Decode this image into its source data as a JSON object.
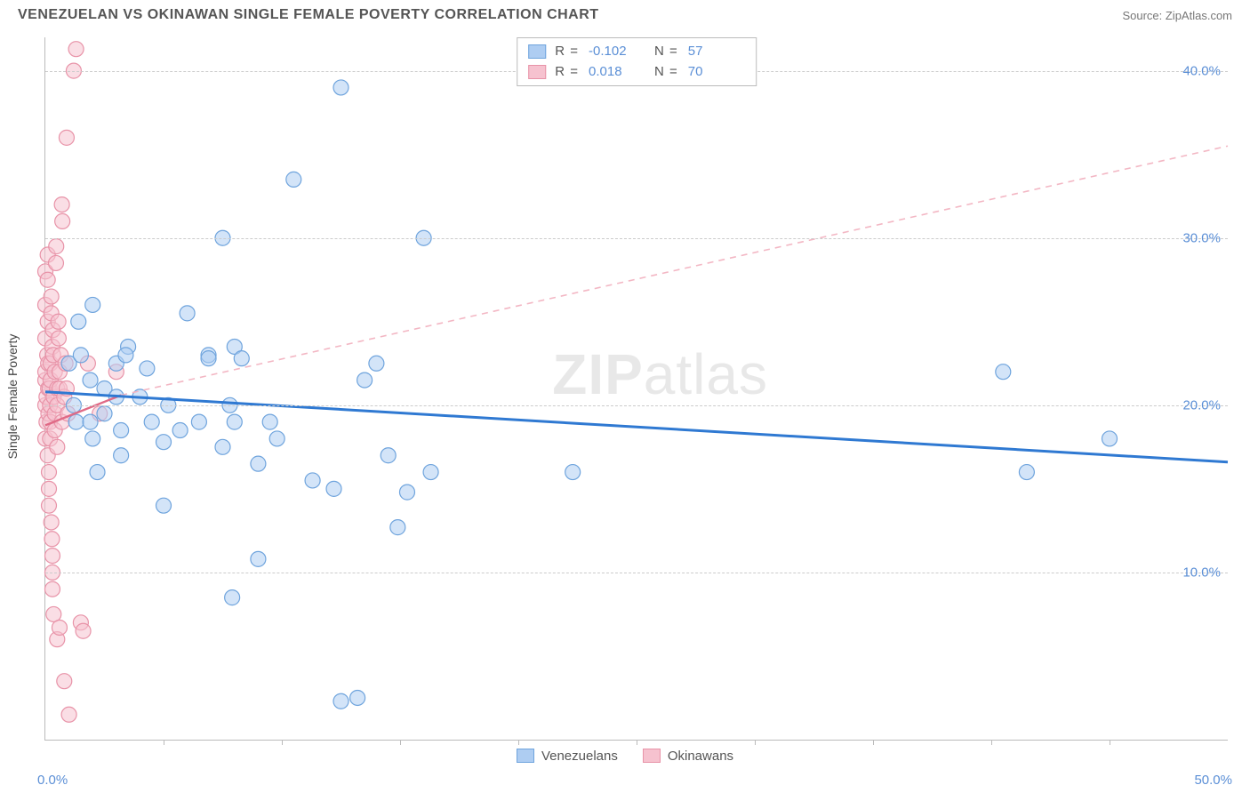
{
  "title": "VENEZUELAN VS OKINAWAN SINGLE FEMALE POVERTY CORRELATION CHART",
  "source_label": "Source: ZipAtlas.com",
  "watermark": "ZIPatlas",
  "y_axis_title": "Single Female Poverty",
  "chart": {
    "type": "scatter",
    "xlim": [
      0,
      50
    ],
    "ylim": [
      0,
      42
    ],
    "x_tick_step": 5,
    "x_origin_label": "0.0%",
    "x_max_label": "50.0%",
    "y_ticks": [
      10,
      20,
      30,
      40
    ],
    "y_tick_labels": [
      "10.0%",
      "20.0%",
      "30.0%",
      "40.0%"
    ],
    "grid_color": "#cccccc",
    "background_color": "#ffffff",
    "axis_color": "#bbbbbb",
    "tick_label_color": "#5b8fd6",
    "marker_radius": 8.5,
    "marker_stroke_width": 1.2,
    "series": {
      "venezuelans": {
        "label": "Venezuelans",
        "fill": "#aecdf2",
        "stroke": "#6fa4dd",
        "fill_opacity": 0.55,
        "R": "-0.102",
        "N": "57",
        "trend": {
          "type": "solid",
          "color": "#2f79d2",
          "width": 3,
          "x1": 0,
          "y1": 20.8,
          "x2": 50,
          "y2": 16.6
        },
        "points": [
          [
            1.0,
            22.5
          ],
          [
            1.2,
            20.0
          ],
          [
            1.3,
            19.0
          ],
          [
            1.4,
            25.0
          ],
          [
            1.5,
            23.0
          ],
          [
            1.9,
            19.0
          ],
          [
            1.9,
            21.5
          ],
          [
            2.0,
            18.0
          ],
          [
            2.0,
            26.0
          ],
          [
            2.2,
            16.0
          ],
          [
            2.5,
            21.0
          ],
          [
            2.5,
            19.5
          ],
          [
            3.0,
            20.5
          ],
          [
            3.0,
            22.5
          ],
          [
            3.2,
            18.5
          ],
          [
            3.2,
            17.0
          ],
          [
            3.5,
            23.5
          ],
          [
            3.4,
            23.0
          ],
          [
            4.0,
            20.5
          ],
          [
            4.5,
            19.0
          ],
          [
            4.3,
            22.2
          ],
          [
            5.0,
            17.8
          ],
          [
            5.0,
            14.0
          ],
          [
            5.2,
            20.0
          ],
          [
            5.7,
            18.5
          ],
          [
            6.0,
            25.5
          ],
          [
            6.5,
            19.0
          ],
          [
            6.9,
            23.0
          ],
          [
            6.9,
            22.8
          ],
          [
            7.5,
            17.5
          ],
          [
            7.5,
            30.0
          ],
          [
            7.8,
            20.0
          ],
          [
            7.9,
            8.5
          ],
          [
            8.0,
            19.0
          ],
          [
            8.0,
            23.5
          ],
          [
            8.3,
            22.8
          ],
          [
            9.0,
            16.5
          ],
          [
            9.0,
            10.8
          ],
          [
            9.5,
            19.0
          ],
          [
            9.8,
            18.0
          ],
          [
            10.5,
            33.5
          ],
          [
            11.3,
            15.5
          ],
          [
            12.2,
            15.0
          ],
          [
            12.5,
            2.3
          ],
          [
            13.2,
            2.5
          ],
          [
            12.5,
            39.0
          ],
          [
            13.5,
            21.5
          ],
          [
            14.0,
            22.5
          ],
          [
            14.5,
            17.0
          ],
          [
            14.9,
            12.7
          ],
          [
            15.3,
            14.8
          ],
          [
            16.0,
            30.0
          ],
          [
            16.3,
            16.0
          ],
          [
            22.3,
            16.0
          ],
          [
            40.5,
            22.0
          ],
          [
            41.5,
            16.0
          ],
          [
            45.0,
            18.0
          ]
        ]
      },
      "okinawans": {
        "label": "Okinawans",
        "fill": "#f6c2cf",
        "stroke": "#e893a8",
        "fill_opacity": 0.55,
        "R": "0.018",
        "N": "70",
        "trend_solid": {
          "color": "#e06a86",
          "width": 2.4,
          "x1": 0,
          "y1": 18.8,
          "x2": 3.2,
          "y2": 20.6
        },
        "trend_dashed": {
          "color": "#f3b7c4",
          "width": 1.6,
          "dash": "7 6",
          "x1": 3.2,
          "y1": 20.6,
          "x2": 50,
          "y2": 35.5
        },
        "points": [
          [
            0.0,
            18.0
          ],
          [
            0.0,
            20.0
          ],
          [
            0.0,
            21.5
          ],
          [
            0.0,
            22.0
          ],
          [
            0.0,
            24.0
          ],
          [
            0.0,
            26.0
          ],
          [
            0.0,
            28.0
          ],
          [
            0.05,
            19.0
          ],
          [
            0.05,
            20.5
          ],
          [
            0.08,
            23.0
          ],
          [
            0.1,
            25.0
          ],
          [
            0.1,
            27.5
          ],
          [
            0.1,
            29.0
          ],
          [
            0.1,
            17.0
          ],
          [
            0.12,
            21.0
          ],
          [
            0.12,
            22.5
          ],
          [
            0.13,
            19.5
          ],
          [
            0.15,
            16.0
          ],
          [
            0.15,
            14.0
          ],
          [
            0.15,
            15.0
          ],
          [
            0.18,
            21.0
          ],
          [
            0.2,
            20.0
          ],
          [
            0.2,
            19.0
          ],
          [
            0.2,
            18.0
          ],
          [
            0.22,
            22.5
          ],
          [
            0.22,
            21.5
          ],
          [
            0.25,
            25.5
          ],
          [
            0.25,
            26.5
          ],
          [
            0.25,
            13.0
          ],
          [
            0.28,
            12.0
          ],
          [
            0.3,
            23.5
          ],
          [
            0.3,
            11.0
          ],
          [
            0.3,
            10.0
          ],
          [
            0.3,
            9.0
          ],
          [
            0.32,
            24.5
          ],
          [
            0.33,
            23.0
          ],
          [
            0.35,
            20.5
          ],
          [
            0.35,
            7.5
          ],
          [
            0.4,
            19.5
          ],
          [
            0.4,
            18.5
          ],
          [
            0.4,
            22.0
          ],
          [
            0.45,
            28.5
          ],
          [
            0.46,
            29.5
          ],
          [
            0.5,
            21.0
          ],
          [
            0.5,
            20.0
          ],
          [
            0.5,
            17.5
          ],
          [
            0.5,
            6.0
          ],
          [
            0.55,
            25.0
          ],
          [
            0.56,
            24.0
          ],
          [
            0.6,
            22.0
          ],
          [
            0.6,
            21.0
          ],
          [
            0.6,
            6.7
          ],
          [
            0.65,
            23.0
          ],
          [
            0.7,
            19.0
          ],
          [
            0.7,
            32.0
          ],
          [
            0.72,
            31.0
          ],
          [
            0.8,
            20.5
          ],
          [
            0.8,
            3.5
          ],
          [
            0.85,
            22.5
          ],
          [
            0.9,
            21.0
          ],
          [
            0.9,
            36.0
          ],
          [
            0.95,
            19.5
          ],
          [
            1.0,
            1.5
          ],
          [
            1.2,
            40.0
          ],
          [
            1.3,
            41.3
          ],
          [
            1.5,
            7.0
          ],
          [
            1.6,
            6.5
          ],
          [
            1.8,
            22.5
          ],
          [
            2.3,
            19.5
          ],
          [
            3.0,
            22.0
          ]
        ]
      }
    },
    "legend_top": {
      "rows": [
        {
          "swatch_fill": "#aecdf2",
          "swatch_stroke": "#6fa4dd",
          "r_label": "R",
          "r_value": "-0.102",
          "n_label": "N",
          "n_value": "57"
        },
        {
          "swatch_fill": "#f6c2cf",
          "swatch_stroke": "#e893a8",
          "r_label": "R",
          "r_value": "0.018",
          "n_label": "N",
          "n_value": "70"
        }
      ]
    },
    "legend_bottom": [
      {
        "swatch_fill": "#aecdf2",
        "swatch_stroke": "#6fa4dd",
        "label": "Venezuelans"
      },
      {
        "swatch_fill": "#f6c2cf",
        "swatch_stroke": "#e893a8",
        "label": "Okinawans"
      }
    ]
  }
}
